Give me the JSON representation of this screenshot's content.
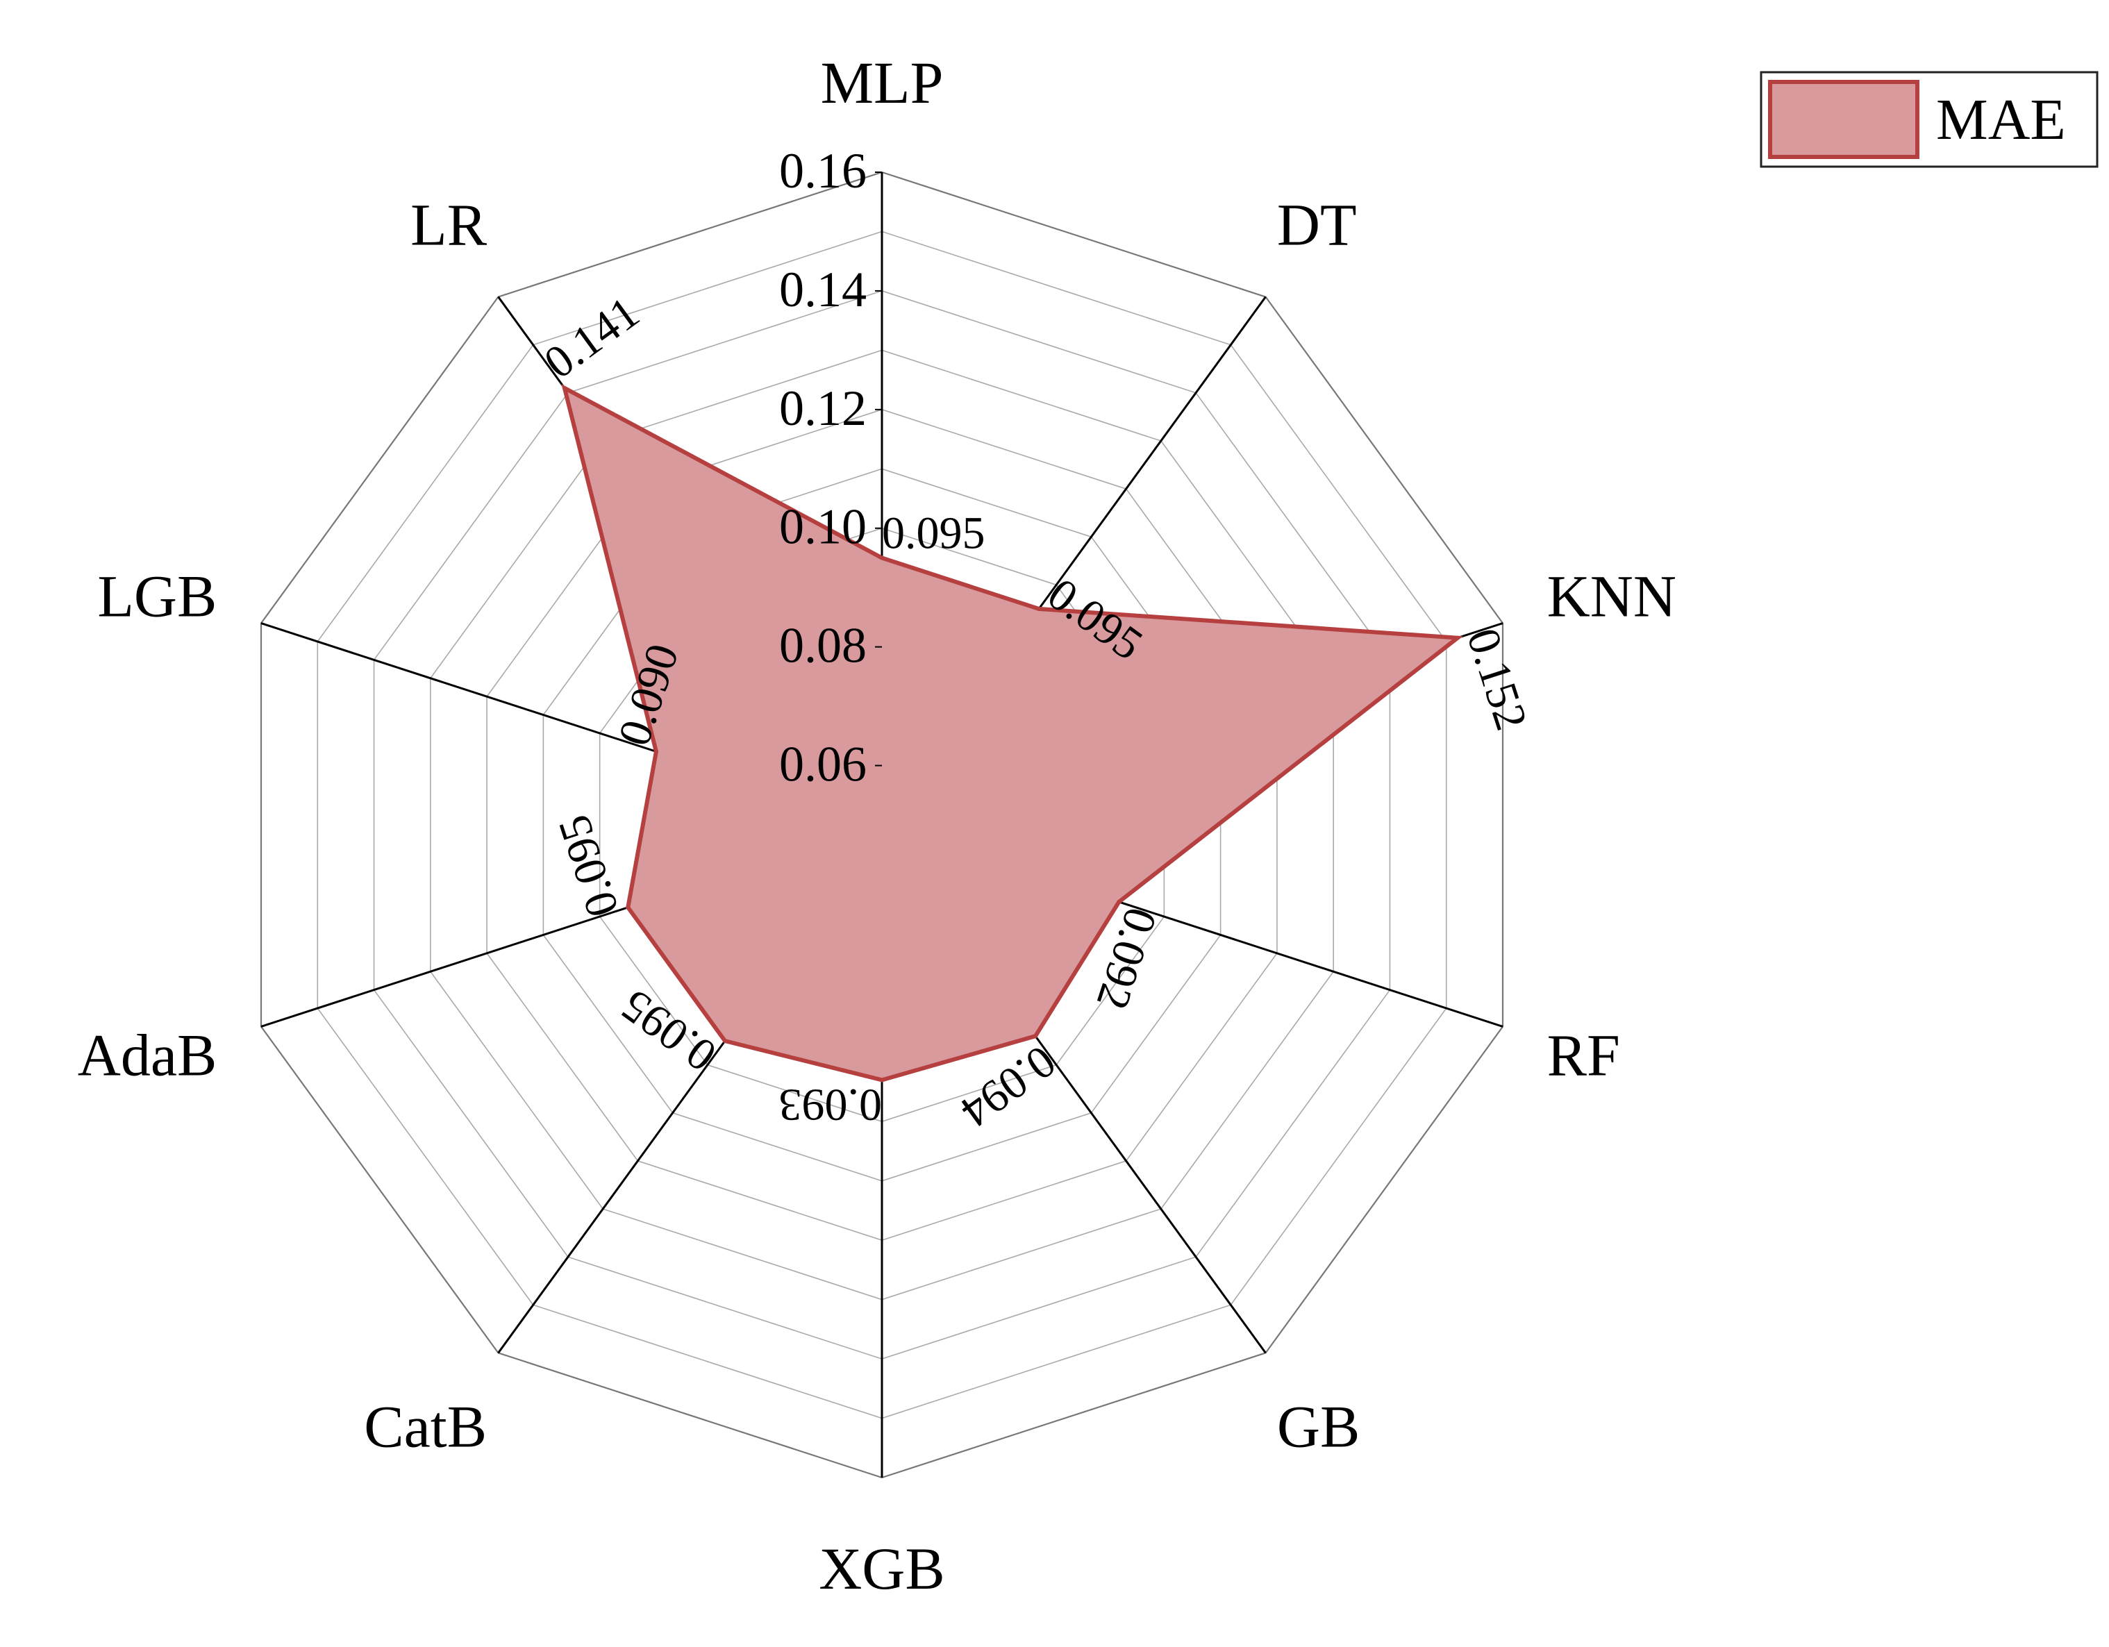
{
  "chart_data": {
    "type": "radar",
    "categories": [
      "MLP",
      "DT",
      "KNN",
      "RF",
      "GB",
      "XGB",
      "CatB",
      "AdaB",
      "LGB",
      "LR"
    ],
    "series": [
      {
        "name": "MAE",
        "values": [
          0.095,
          0.095,
          0.152,
          0.092,
          0.094,
          0.093,
          0.095,
          0.095,
          0.09,
          0.141
        ]
      }
    ],
    "value_labels": [
      "0.095",
      "0.095",
      "0.152",
      "0.092",
      "0.094",
      "0.093",
      "0.095",
      "0.095",
      "0.090",
      "0.141"
    ],
    "radial_axis": {
      "min": 0.05,
      "max": 0.16,
      "tick_values": [
        0.06,
        0.08,
        0.1,
        0.12,
        0.14,
        0.16
      ],
      "tick_labels": [
        "0.06",
        "0.08",
        "0.10",
        "0.12",
        "0.14",
        "0.16"
      ]
    },
    "grid_rings": 11,
    "grid": true,
    "legend": {
      "position": "top-right",
      "entries": [
        "MAE"
      ]
    },
    "colors": {
      "fill": "#d89a9c",
      "stroke": "#b5403f",
      "grid": "#a9a9a9",
      "axis": "#000000"
    }
  }
}
